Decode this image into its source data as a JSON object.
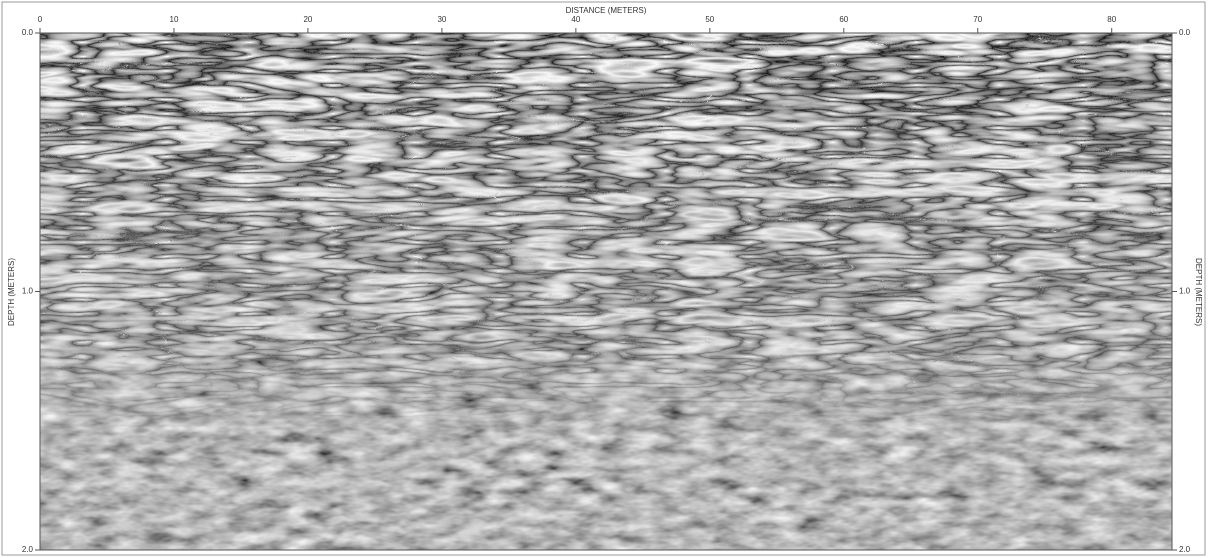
{
  "chart_data": {
    "type": "radargram",
    "x_label": "DISTANCE (METERS)",
    "y_label": "DEPTH (METERS)",
    "y2_label": "DEPTH (METERS)",
    "xlim": [
      0,
      84.5
    ],
    "xticks": [
      0,
      10,
      20,
      30,
      40,
      50,
      60,
      70,
      80
    ],
    "ylim": [
      0,
      2
    ],
    "yticks": [
      {
        "value": 0,
        "label": "0.0"
      },
      {
        "value": 1,
        "label": "1.0"
      },
      {
        "value": 2,
        "label": "2.0"
      }
    ],
    "y2lim": [
      0,
      2
    ],
    "y2ticks": [
      {
        "value": 0,
        "label": "0.0"
      },
      {
        "value": 1,
        "label": "1.0"
      },
      {
        "value": 2,
        "label": "2.0"
      }
    ],
    "y_inverted": true
  }
}
